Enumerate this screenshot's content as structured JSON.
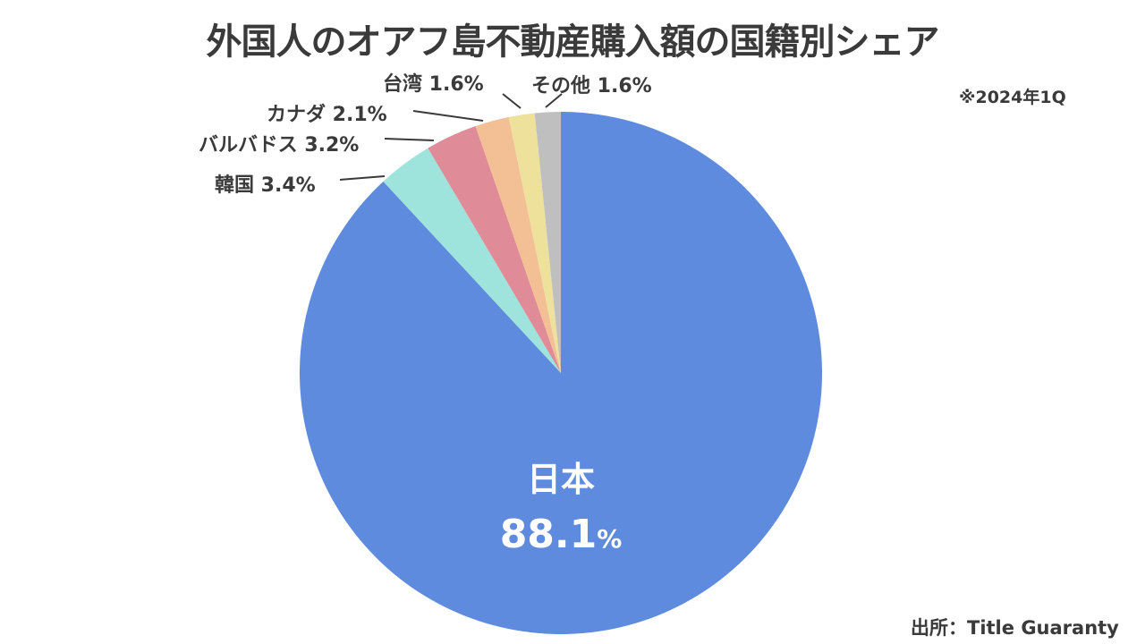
{
  "title": "外国人のオアフ島不動産購入額の国籍別シェア",
  "note": "※2024年1Q",
  "source": "出所：Title Guaranty",
  "chart_data": {
    "type": "pie",
    "title": "外国人のオアフ島不動産購入額の国籍別シェア",
    "subtitle": "※2024年1Q",
    "source": "出所：Title Guaranty",
    "categories": [
      "日本",
      "韓国",
      "バルバドス",
      "カナダ",
      "台湾",
      "その他"
    ],
    "values": [
      88.1,
      3.4,
      3.2,
      2.1,
      1.6,
      1.6
    ],
    "unit": "%",
    "colors": [
      "#5f8bde",
      "#9ee3dc",
      "#e08c98",
      "#f3c095",
      "#ede19c",
      "#bfbfbf"
    ],
    "start_angle": "12 o'clock, clockwise",
    "legend": "none (data labels)"
  },
  "labels": {
    "japan_name": "日本",
    "japan_value": "88.1",
    "japan_pct": "%",
    "korea": "韓国 3.4%",
    "barbados": "バルバドス 3.2%",
    "canada": "カナダ 2.1%",
    "taiwan": "台湾 1.6%",
    "other": "その他 1.6%"
  }
}
